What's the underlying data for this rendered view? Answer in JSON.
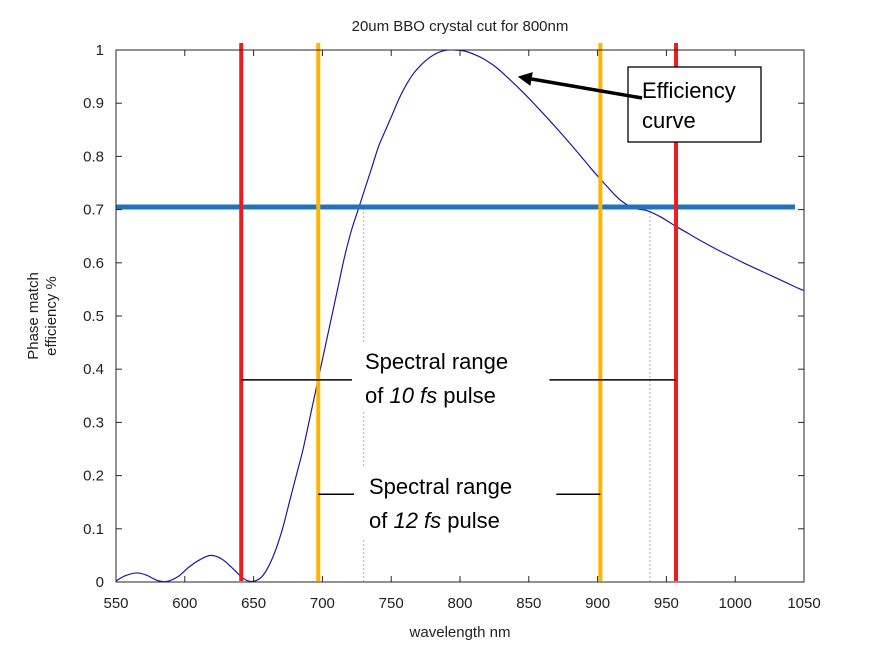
{
  "chart_data": {
    "type": "line",
    "title": "20um BBO crystal cut for 800nm",
    "xlabel": "wavelength nm",
    "ylabel": [
      "Phase match",
      "efficiency %"
    ],
    "xlim": [
      550,
      1050
    ],
    "ylim": [
      0,
      1
    ],
    "xticks": [
      550,
      600,
      650,
      700,
      750,
      800,
      850,
      900,
      950,
      1000,
      1050
    ],
    "yticks": [
      0,
      0.1,
      0.2,
      0.3,
      0.4,
      0.5,
      0.6,
      0.7,
      0.8,
      0.9,
      1
    ],
    "ytick_labels": [
      "0",
      "0.1",
      "0.2",
      "0.3",
      "0.4",
      "0.5",
      "0.6",
      "0.7",
      "0.8",
      "0.9",
      "1"
    ],
    "grid": false,
    "series": [
      {
        "name": "Efficiency curve",
        "color": "#1a1aa0",
        "x": [
          550,
          557,
          565,
          572,
          580,
          587,
          595,
          603,
          611,
          619,
          627,
          635,
          641,
          646,
          651,
          656,
          661,
          666,
          671,
          676,
          681,
          686,
          691,
          696,
          701,
          706,
          711,
          716,
          721,
          726,
          731,
          736,
          741,
          746,
          751,
          756,
          761,
          766,
          771,
          776,
          781,
          786,
          791,
          796,
          801,
          806,
          811,
          816,
          821,
          826,
          836,
          846,
          856,
          866,
          876,
          886,
          896,
          906,
          916,
          926,
          936,
          946,
          956,
          966,
          976,
          986,
          996,
          1006,
          1016,
          1026,
          1036,
          1046,
          1050
        ],
        "y": [
          0.002,
          0.012,
          0.017,
          0.013,
          0.003,
          0.001,
          0.01,
          0.028,
          0.042,
          0.05,
          0.043,
          0.025,
          0.01,
          0.002,
          0.002,
          0.01,
          0.03,
          0.06,
          0.1,
          0.15,
          0.2,
          0.25,
          0.31,
          0.37,
          0.43,
          0.49,
          0.55,
          0.61,
          0.66,
          0.7,
          0.74,
          0.78,
          0.82,
          0.85,
          0.88,
          0.91,
          0.935,
          0.955,
          0.97,
          0.982,
          0.991,
          0.997,
          1.0,
          1.0,
          0.999,
          0.996,
          0.991,
          0.985,
          0.977,
          0.968,
          0.945,
          0.92,
          0.893,
          0.865,
          0.836,
          0.806,
          0.775,
          0.746,
          0.719,
          0.703,
          0.698,
          0.686,
          0.67,
          0.655,
          0.64,
          0.626,
          0.613,
          0.6,
          0.588,
          0.576,
          0.564,
          0.552,
          0.548
        ]
      }
    ],
    "thresholds": [
      {
        "axis": "y",
        "value": 0.705,
        "color": "#1f75bb"
      }
    ],
    "vlines": [
      {
        "x": 641,
        "color": "#ee1c1c"
      },
      {
        "x": 957,
        "color": "#ee1c1c"
      },
      {
        "x": 697,
        "color": "#ffb400"
      },
      {
        "x": 902,
        "color": "#ffb400"
      }
    ],
    "dotted_lines": [
      {
        "x": 730,
        "y0": 0,
        "y1": 0.705,
        "color": "#b0b0b0"
      },
      {
        "x": 938,
        "y0": 0,
        "y1": 0.705,
        "color": "#b0b0b0"
      }
    ],
    "range_markers": [
      {
        "y": 0.38,
        "segments": [
          [
            641,
            725
          ],
          [
            865,
            957
          ]
        ]
      },
      {
        "y": 0.165,
        "segments": [
          [
            697,
            723
          ],
          [
            870,
            902
          ]
        ]
      }
    ],
    "annotations": [
      {
        "id": "efficiency",
        "lines": [
          "Efficiency",
          "curve"
        ],
        "arrow_to": [
          842,
          0.95
        ]
      },
      {
        "id": "range10",
        "lines": [
          [
            "Spectral range"
          ],
          [
            "of ",
            "10 fs",
            " pulse"
          ]
        ]
      },
      {
        "id": "range12",
        "lines": [
          [
            "Spectral range"
          ],
          [
            "of ",
            "12 fs",
            " pulse"
          ]
        ]
      }
    ]
  }
}
